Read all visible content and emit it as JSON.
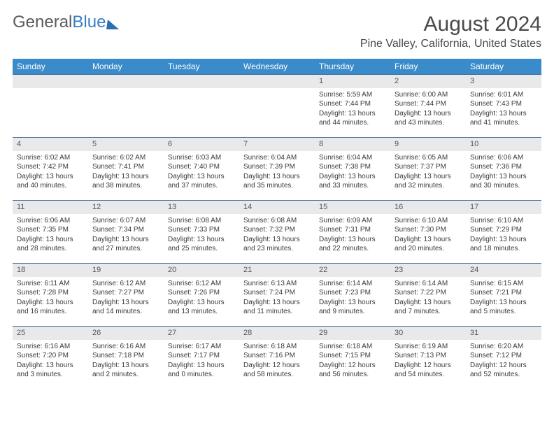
{
  "logo": {
    "textGray": "General",
    "textBlue": "Blue"
  },
  "title": "August 2024",
  "location": "Pine Valley, California, United States",
  "colors": {
    "header_bg": "#3a8bc9",
    "header_text": "#ffffff",
    "daynum_bg": "#e7e9eb",
    "row_border": "#4a70a0",
    "body_text": "#3a3a3a",
    "logo_gray": "#5a5a5a",
    "logo_blue": "#3a7fc4"
  },
  "day_headers": [
    "Sunday",
    "Monday",
    "Tuesday",
    "Wednesday",
    "Thursday",
    "Friday",
    "Saturday"
  ],
  "weeks": [
    [
      {
        "n": "",
        "sr": "",
        "ss": "",
        "dl": ""
      },
      {
        "n": "",
        "sr": "",
        "ss": "",
        "dl": ""
      },
      {
        "n": "",
        "sr": "",
        "ss": "",
        "dl": ""
      },
      {
        "n": "",
        "sr": "",
        "ss": "",
        "dl": ""
      },
      {
        "n": "1",
        "sr": "Sunrise: 5:59 AM",
        "ss": "Sunset: 7:44 PM",
        "dl": "Daylight: 13 hours and 44 minutes."
      },
      {
        "n": "2",
        "sr": "Sunrise: 6:00 AM",
        "ss": "Sunset: 7:44 PM",
        "dl": "Daylight: 13 hours and 43 minutes."
      },
      {
        "n": "3",
        "sr": "Sunrise: 6:01 AM",
        "ss": "Sunset: 7:43 PM",
        "dl": "Daylight: 13 hours and 41 minutes."
      }
    ],
    [
      {
        "n": "4",
        "sr": "Sunrise: 6:02 AM",
        "ss": "Sunset: 7:42 PM",
        "dl": "Daylight: 13 hours and 40 minutes."
      },
      {
        "n": "5",
        "sr": "Sunrise: 6:02 AM",
        "ss": "Sunset: 7:41 PM",
        "dl": "Daylight: 13 hours and 38 minutes."
      },
      {
        "n": "6",
        "sr": "Sunrise: 6:03 AM",
        "ss": "Sunset: 7:40 PM",
        "dl": "Daylight: 13 hours and 37 minutes."
      },
      {
        "n": "7",
        "sr": "Sunrise: 6:04 AM",
        "ss": "Sunset: 7:39 PM",
        "dl": "Daylight: 13 hours and 35 minutes."
      },
      {
        "n": "8",
        "sr": "Sunrise: 6:04 AM",
        "ss": "Sunset: 7:38 PM",
        "dl": "Daylight: 13 hours and 33 minutes."
      },
      {
        "n": "9",
        "sr": "Sunrise: 6:05 AM",
        "ss": "Sunset: 7:37 PM",
        "dl": "Daylight: 13 hours and 32 minutes."
      },
      {
        "n": "10",
        "sr": "Sunrise: 6:06 AM",
        "ss": "Sunset: 7:36 PM",
        "dl": "Daylight: 13 hours and 30 minutes."
      }
    ],
    [
      {
        "n": "11",
        "sr": "Sunrise: 6:06 AM",
        "ss": "Sunset: 7:35 PM",
        "dl": "Daylight: 13 hours and 28 minutes."
      },
      {
        "n": "12",
        "sr": "Sunrise: 6:07 AM",
        "ss": "Sunset: 7:34 PM",
        "dl": "Daylight: 13 hours and 27 minutes."
      },
      {
        "n": "13",
        "sr": "Sunrise: 6:08 AM",
        "ss": "Sunset: 7:33 PM",
        "dl": "Daylight: 13 hours and 25 minutes."
      },
      {
        "n": "14",
        "sr": "Sunrise: 6:08 AM",
        "ss": "Sunset: 7:32 PM",
        "dl": "Daylight: 13 hours and 23 minutes."
      },
      {
        "n": "15",
        "sr": "Sunrise: 6:09 AM",
        "ss": "Sunset: 7:31 PM",
        "dl": "Daylight: 13 hours and 22 minutes."
      },
      {
        "n": "16",
        "sr": "Sunrise: 6:10 AM",
        "ss": "Sunset: 7:30 PM",
        "dl": "Daylight: 13 hours and 20 minutes."
      },
      {
        "n": "17",
        "sr": "Sunrise: 6:10 AM",
        "ss": "Sunset: 7:29 PM",
        "dl": "Daylight: 13 hours and 18 minutes."
      }
    ],
    [
      {
        "n": "18",
        "sr": "Sunrise: 6:11 AM",
        "ss": "Sunset: 7:28 PM",
        "dl": "Daylight: 13 hours and 16 minutes."
      },
      {
        "n": "19",
        "sr": "Sunrise: 6:12 AM",
        "ss": "Sunset: 7:27 PM",
        "dl": "Daylight: 13 hours and 14 minutes."
      },
      {
        "n": "20",
        "sr": "Sunrise: 6:12 AM",
        "ss": "Sunset: 7:26 PM",
        "dl": "Daylight: 13 hours and 13 minutes."
      },
      {
        "n": "21",
        "sr": "Sunrise: 6:13 AM",
        "ss": "Sunset: 7:24 PM",
        "dl": "Daylight: 13 hours and 11 minutes."
      },
      {
        "n": "22",
        "sr": "Sunrise: 6:14 AM",
        "ss": "Sunset: 7:23 PM",
        "dl": "Daylight: 13 hours and 9 minutes."
      },
      {
        "n": "23",
        "sr": "Sunrise: 6:14 AM",
        "ss": "Sunset: 7:22 PM",
        "dl": "Daylight: 13 hours and 7 minutes."
      },
      {
        "n": "24",
        "sr": "Sunrise: 6:15 AM",
        "ss": "Sunset: 7:21 PM",
        "dl": "Daylight: 13 hours and 5 minutes."
      }
    ],
    [
      {
        "n": "25",
        "sr": "Sunrise: 6:16 AM",
        "ss": "Sunset: 7:20 PM",
        "dl": "Daylight: 13 hours and 3 minutes."
      },
      {
        "n": "26",
        "sr": "Sunrise: 6:16 AM",
        "ss": "Sunset: 7:18 PM",
        "dl": "Daylight: 13 hours and 2 minutes."
      },
      {
        "n": "27",
        "sr": "Sunrise: 6:17 AM",
        "ss": "Sunset: 7:17 PM",
        "dl": "Daylight: 13 hours and 0 minutes."
      },
      {
        "n": "28",
        "sr": "Sunrise: 6:18 AM",
        "ss": "Sunset: 7:16 PM",
        "dl": "Daylight: 12 hours and 58 minutes."
      },
      {
        "n": "29",
        "sr": "Sunrise: 6:18 AM",
        "ss": "Sunset: 7:15 PM",
        "dl": "Daylight: 12 hours and 56 minutes."
      },
      {
        "n": "30",
        "sr": "Sunrise: 6:19 AM",
        "ss": "Sunset: 7:13 PM",
        "dl": "Daylight: 12 hours and 54 minutes."
      },
      {
        "n": "31",
        "sr": "Sunrise: 6:20 AM",
        "ss": "Sunset: 7:12 PM",
        "dl": "Daylight: 12 hours and 52 minutes."
      }
    ]
  ]
}
